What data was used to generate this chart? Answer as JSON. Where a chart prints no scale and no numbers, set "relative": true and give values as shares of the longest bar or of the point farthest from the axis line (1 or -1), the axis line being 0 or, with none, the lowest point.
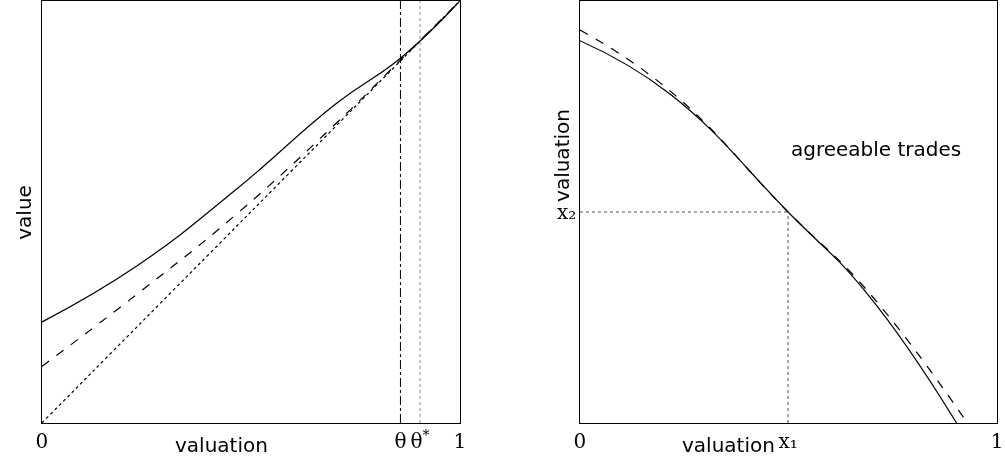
{
  "chart_data": [
    {
      "type": "line",
      "relative": true,
      "xlabel": "valuation",
      "ylabel": "value",
      "xlim": [
        0,
        1
      ],
      "xticks": [
        0,
        {
          "value": 0.858,
          "label": "θ"
        },
        {
          "value": 0.905,
          "label": "θ$^{*}$"
        },
        1
      ],
      "series": [
        {
          "color": "#000000",
          "line_style": "solid",
          "x": [
            0,
            0.23,
            0.467,
            0.703,
            0.86,
            1
          ],
          "values": [
            0.239,
            0.374,
            0.555,
            0.756,
            0.866,
            1
          ]
        },
        {
          "color": "#000000",
          "line_style": "dashed",
          "x": [
            0,
            0.23,
            0.467,
            0.703,
            0.86,
            1
          ],
          "values": [
            0.134,
            0.307,
            0.496,
            0.709,
            0.862,
            1
          ]
        },
        {
          "color": "#000000",
          "line_style": "dotted",
          "x": [
            0,
            0.5,
            1
          ],
          "values": [
            0,
            0.5,
            1
          ]
        }
      ],
      "ref_lines": [
        {
          "axis": "x",
          "value": 0.858,
          "line_style": "dashdot",
          "color": "#000000"
        },
        {
          "axis": "x",
          "value": 0.905,
          "line_style": "dotted",
          "color": "#888888"
        }
      ]
    },
    {
      "type": "line",
      "relative": true,
      "xlabel": "valuation",
      "ylabel": "valuation",
      "xlim": [
        0,
        1
      ],
      "xticks": [
        0,
        {
          "value": 0.499,
          "label": "x₁"
        },
        1
      ],
      "series": [
        {
          "color": "#000000",
          "line_style": "solid",
          "x": [
            0,
            0.215,
            0.499,
            0.688,
            0.903
          ],
          "values": [
            0.973,
            0.838,
            0.537,
            0.33,
            0
          ]
        },
        {
          "color": "#000000",
          "line_style": "dashed",
          "x": [
            0,
            0.215,
            0.499,
            0.688,
            0.929
          ],
          "values": [
            1,
            0.846,
            0.537,
            0.338,
            0
          ]
        }
      ],
      "ref_lines": [
        {
          "axis": "y",
          "value": 0.537,
          "label": "x₂",
          "line_style": "dotted",
          "color": "#555555"
        },
        {
          "axis": "x",
          "value": 0.499,
          "line_style": "dotted",
          "color": "#555555"
        }
      ],
      "annotations": [
        "agreeable trades"
      ]
    }
  ]
}
